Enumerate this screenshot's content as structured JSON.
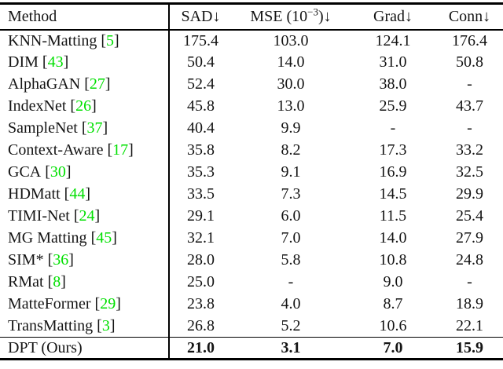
{
  "colors": {
    "citation": "#00e000",
    "text": "#141414",
    "rule": "#000000",
    "background": "#ffffff"
  },
  "punct": {
    "open_bracket": "[",
    "close_bracket": "]"
  },
  "header": {
    "method": "Method",
    "sad": "SAD↓",
    "mse_prefix": "MSE (10",
    "mse_sup": "−3",
    "mse_suffix": ")↓",
    "grad": "Grad↓",
    "conn": "Conn↓"
  },
  "rows": [
    {
      "method": "KNN-Matting",
      "cite": "5",
      "sad": "175.4",
      "mse": "103.0",
      "grad": "124.1",
      "conn": "176.4",
      "bold": false
    },
    {
      "method": "DIM",
      "cite": "43",
      "sad": "50.4",
      "mse": "14.0",
      "grad": "31.0",
      "conn": "50.8",
      "bold": false
    },
    {
      "method": "AlphaGAN",
      "cite": "27",
      "sad": "52.4",
      "mse": "30.0",
      "grad": "38.0",
      "conn": "-",
      "bold": false
    },
    {
      "method": "IndexNet",
      "cite": "26",
      "sad": "45.8",
      "mse": "13.0",
      "grad": "25.9",
      "conn": "43.7",
      "bold": false
    },
    {
      "method": "SampleNet",
      "cite": "37",
      "sad": "40.4",
      "mse": "9.9",
      "grad": "-",
      "conn": "-",
      "bold": false
    },
    {
      "method": "Context-Aware",
      "cite": "17",
      "sad": "35.8",
      "mse": "8.2",
      "grad": "17.3",
      "conn": "33.2",
      "bold": false
    },
    {
      "method": "GCA",
      "cite": "30",
      "sad": "35.3",
      "mse": "9.1",
      "grad": "16.9",
      "conn": "32.5",
      "bold": false
    },
    {
      "method": "HDMatt",
      "cite": "44",
      "sad": "33.5",
      "mse": "7.3",
      "grad": "14.5",
      "conn": "29.9",
      "bold": false
    },
    {
      "method": "TIMI-Net",
      "cite": "24",
      "sad": "29.1",
      "mse": "6.0",
      "grad": "11.5",
      "conn": "25.4",
      "bold": false
    },
    {
      "method": "MG Matting",
      "cite": "45",
      "sad": "32.1",
      "mse": "7.0",
      "grad": "14.0",
      "conn": "27.9",
      "bold": false
    },
    {
      "method": "SIM*",
      "cite": "36",
      "sad": "28.0",
      "mse": "5.8",
      "grad": "10.8",
      "conn": "24.8",
      "bold": false
    },
    {
      "method": "RMat",
      "cite": "8",
      "sad": "25.0",
      "mse": "-",
      "grad": "9.0",
      "conn": "-",
      "bold": false
    },
    {
      "method": "MatteFormer",
      "cite": "29",
      "sad": "23.8",
      "mse": "4.0",
      "grad": "8.7",
      "conn": "18.9",
      "bold": false
    },
    {
      "method": "TransMatting",
      "cite": "3",
      "sad": "26.8",
      "mse": "5.2",
      "grad": "10.6",
      "conn": "22.1",
      "bold": false
    },
    {
      "method": "DPT (Ours)",
      "cite": null,
      "sad": "21.0",
      "mse": "3.1",
      "grad": "7.0",
      "conn": "15.9",
      "bold": true
    }
  ]
}
